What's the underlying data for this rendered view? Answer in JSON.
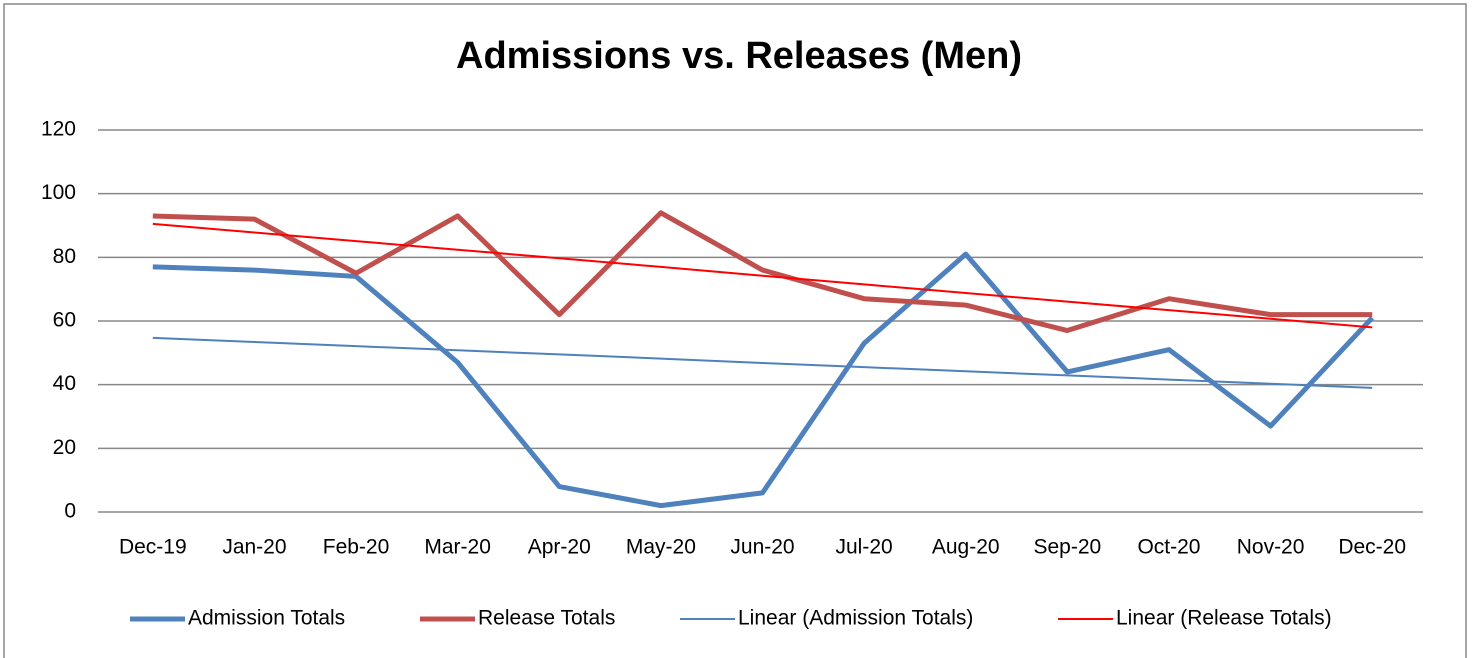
{
  "chart_data": {
    "type": "line",
    "title": "Admissions vs. Releases (Men)",
    "categories": [
      "Dec-19",
      "Jan-20",
      "Feb-20",
      "Mar-20",
      "Apr-20",
      "May-20",
      "Jun-20",
      "Jul-20",
      "Aug-20",
      "Sep-20",
      "Oct-20",
      "Nov-20",
      "Dec-20"
    ],
    "series": [
      {
        "name": "Admission Totals",
        "color": "#4f81bd",
        "values": [
          77,
          76,
          74,
          47,
          8,
          2,
          6,
          53,
          81,
          44,
          51,
          27,
          61
        ]
      },
      {
        "name": "Release Totals",
        "color": "#c0504d",
        "values": [
          93,
          92,
          75,
          93,
          62,
          94,
          76,
          67,
          65,
          57,
          67,
          62,
          62
        ]
      },
      {
        "name": "Linear (Admission Totals)",
        "color": "#4f81bd",
        "trendline": true,
        "values": [
          54.7,
          53.4,
          52.1,
          50.8,
          49.5,
          48.2,
          46.8,
          45.5,
          44.2,
          42.9,
          41.6,
          40.3,
          39.0
        ]
      },
      {
        "name": "Linear (Release Totals)",
        "color": "#ff0000",
        "trendline": true,
        "values": [
          90.5,
          87.8,
          85.1,
          82.4,
          79.7,
          77.0,
          74.2,
          71.5,
          68.8,
          66.1,
          63.4,
          60.7,
          58.0
        ]
      }
    ],
    "ylim": [
      0,
      120
    ],
    "yticks": [
      0,
      20,
      40,
      60,
      80,
      100,
      120
    ],
    "grid": true,
    "legend": "bottom"
  }
}
